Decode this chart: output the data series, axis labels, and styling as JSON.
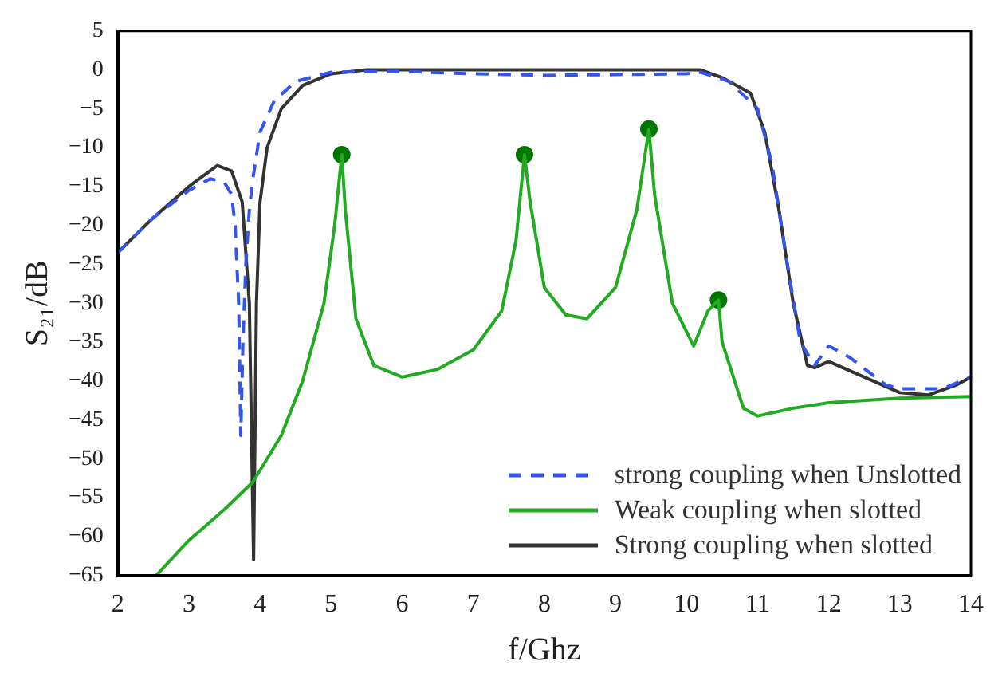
{
  "chart_data": {
    "type": "line",
    "xlabel": "f/Ghz",
    "ylabel": "S₂₁/dB",
    "xlim": [
      2,
      14
    ],
    "xticks": [
      2,
      3,
      4,
      5,
      6,
      7,
      8,
      9,
      10,
      11,
      12,
      13,
      14
    ],
    "ylim": [
      -65,
      5
    ],
    "yticks": [
      -65,
      -60,
      -55,
      -50,
      -45,
      -40,
      -35,
      -30,
      -25,
      -20,
      -15,
      -10,
      -5,
      0,
      5
    ],
    "grid": false,
    "legend": "bottom right",
    "marker": "none",
    "series": [
      {
        "name": "strong coupling when Unslotted",
        "color": "#3355ee",
        "line_style": "dashed",
        "x": [
          2,
          2.5,
          3,
          3.3,
          3.5,
          3.6,
          3.65,
          3.7,
          3.73,
          3.76,
          3.8,
          3.85,
          3.9,
          4,
          4.2,
          4.5,
          5,
          6,
          7,
          8,
          9,
          10,
          10.2,
          10.6,
          11,
          11.2,
          11.4,
          11.6,
          11.8,
          12,
          12.3,
          12.8,
          13,
          13.6,
          14
        ],
        "values": [
          -23.5,
          -19,
          -15.5,
          -14,
          -14.5,
          -16,
          -20,
          -30,
          -47,
          -35,
          -25,
          -18,
          -14,
          -8,
          -4,
          -1.5,
          -0.3,
          -0.2,
          -0.5,
          -0.7,
          -0.6,
          -0.5,
          -0.3,
          -1.5,
          -5,
          -12,
          -24,
          -35,
          -38,
          -35.5,
          -37,
          -40.5,
          -41,
          -41,
          -39.5
        ]
      },
      {
        "name": "Weak coupling when slotted",
        "color": "#22aa22",
        "line_style": "solid",
        "x": [
          2.54,
          3,
          3.5,
          3.9,
          4.3,
          4.6,
          4.9,
          5.05,
          5.15,
          5.2,
          5.35,
          5.6,
          6,
          6.5,
          7,
          7.4,
          7.6,
          7.72,
          7.8,
          8,
          8.3,
          8.6,
          9,
          9.3,
          9.47,
          9.55,
          9.8,
          10.1,
          10.3,
          10.45,
          10.5,
          10.8,
          11,
          11.5,
          12,
          13,
          14
        ],
        "values": [
          -65,
          -60.5,
          -56.5,
          -53,
          -47,
          -40,
          -30,
          -20,
          -10.9,
          -18,
          -32,
          -38,
          -39.5,
          -38.5,
          -36,
          -31,
          -22,
          -10.9,
          -17,
          -28,
          -31.5,
          -32,
          -28,
          -18,
          -7.6,
          -16,
          -30,
          -35.5,
          -31,
          -29.6,
          -35,
          -43.5,
          -44.5,
          -43.5,
          -42.8,
          -42.2,
          -42
        ]
      },
      {
        "name": "Strong coupling when slotted",
        "color": "#333333",
        "line_style": "solid",
        "x": [
          2,
          2.5,
          3,
          3.4,
          3.6,
          3.75,
          3.85,
          3.91,
          3.95,
          4,
          4.1,
          4.3,
          4.6,
          5,
          5.5,
          7,
          9,
          10.2,
          10.5,
          10.9,
          11.1,
          11.3,
          11.5,
          11.7,
          11.8,
          12,
          12.5,
          13,
          13.4,
          13.8,
          14
        ],
        "values": [
          -23.5,
          -19,
          -15,
          -12.3,
          -13,
          -17,
          -30,
          -63,
          -30,
          -17,
          -10,
          -5,
          -2,
          -0.5,
          0,
          0,
          0,
          0,
          -1,
          -3,
          -8,
          -18,
          -30,
          -38,
          -38.3,
          -37.5,
          -39.5,
          -41.5,
          -41.8,
          -40.5,
          -39.5
        ]
      },
      {
        "type": "scatter",
        "color": "#007700",
        "marker": "circle",
        "x": [
          5.15,
          7.72,
          9.47,
          10.45
        ],
        "values": [
          -10.9,
          -10.9,
          -7.6,
          -29.6
        ]
      }
    ]
  }
}
